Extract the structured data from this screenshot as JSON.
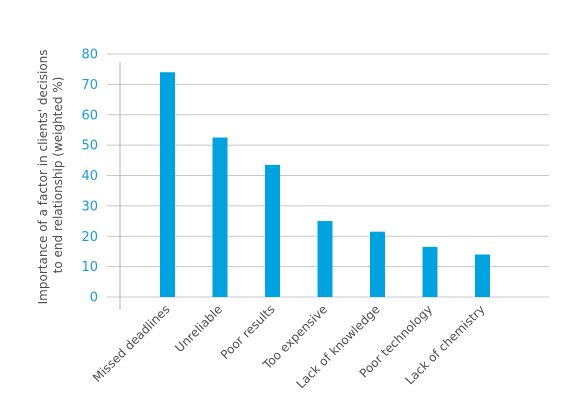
{
  "chart_data": {
    "type": "bar",
    "categories": [
      "Missed deadlines",
      "Unreliable",
      "Poor results",
      "Too expensive",
      "Lack of knowledge",
      "Poor technology",
      "Lack of chemistry"
    ],
    "values": [
      74,
      52.5,
      43.5,
      25,
      21.5,
      16.5,
      14
    ],
    "yticks": [
      0,
      10,
      20,
      30,
      40,
      50,
      60,
      70,
      80
    ],
    "ylim": [
      0,
      80
    ],
    "ylabel_line1": "Importance of a factor in clients' decisions",
    "ylabel_line2": "to end relationship (weighted %)",
    "grid": true,
    "bar_color": "#00a3e0",
    "tick_color": "#1a9bd7"
  }
}
